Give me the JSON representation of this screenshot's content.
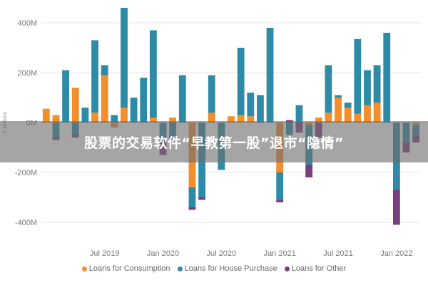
{
  "banner": {
    "text": "股票的交易软件“早教第一股”退市“隐情”"
  },
  "colors": {
    "consumption": "#F28E2B",
    "house": "#2E8BA7",
    "other": "#7B3F7E"
  },
  "chart_data": {
    "type": "bar",
    "stacked": true,
    "ylabel": "£ Millions",
    "ylim": [
      -450,
      480
    ],
    "yticks": [
      -400,
      -200,
      0,
      200,
      400
    ],
    "ytick_labels": [
      "-400M",
      "-200M",
      "0M",
      "200M",
      "400M"
    ],
    "xtick_labels": [
      "Jul 2019",
      "Jan 2020",
      "Jul 2020",
      "Jan 2021",
      "Jul 2021",
      "Jan 2022"
    ],
    "xtick_positions": [
      6,
      12,
      18,
      24,
      30,
      36
    ],
    "legend": {
      "placement": "bottom",
      "items": [
        "Loans for Consumption",
        "Loans for House Purchase",
        "Loans for Other"
      ]
    },
    "grid": true,
    "series": [
      {
        "name": "Loans for Consumption",
        "values": [
          55,
          30,
          0,
          140,
          0,
          40,
          190,
          -20,
          60,
          0,
          0,
          20,
          0,
          20,
          0,
          -260,
          0,
          40,
          0,
          25,
          30,
          25,
          0,
          0,
          -200,
          0,
          0,
          -10,
          20,
          40,
          100,
          60,
          35,
          70,
          80,
          0,
          0,
          0,
          -10
        ]
      },
      {
        "name": "Loans for House Purchase",
        "values": [
          0,
          -60,
          210,
          -50,
          60,
          290,
          40,
          30,
          400,
          100,
          180,
          350,
          -70,
          -70,
          190,
          -80,
          -300,
          150,
          -190,
          0,
          270,
          95,
          110,
          380,
          -110,
          -50,
          70,
          -160,
          0,
          190,
          10,
          20,
          300,
          140,
          150,
          360,
          -270,
          -80,
          -40
        ]
      },
      {
        "name": "Loans for Other",
        "values": [
          0,
          -10,
          0,
          -10,
          0,
          0,
          0,
          0,
          0,
          0,
          0,
          0,
          -60,
          0,
          0,
          -10,
          -10,
          0,
          0,
          0,
          0,
          0,
          0,
          0,
          -10,
          10,
          -40,
          -50,
          -60,
          0,
          0,
          0,
          0,
          0,
          0,
          0,
          -140,
          -40,
          -30
        ]
      }
    ]
  }
}
